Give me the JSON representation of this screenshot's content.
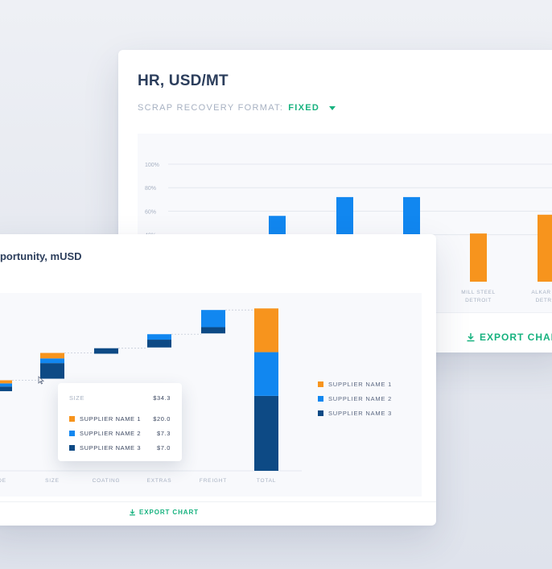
{
  "colors": {
    "supplier1": "#f7941d",
    "supplier2": "#1187f0",
    "supplier3": "#0d4a85",
    "accent": "#17b27f",
    "axis_text": "#a7b1c2",
    "gridline": "#e4e8ef"
  },
  "back_card": {
    "title": "HR, USD/MT",
    "format_label": "SCRAP RECOVERY FORMAT:",
    "format_value": "FIXED",
    "export_label": "EXPORT CHART"
  },
  "front_card": {
    "title": "pportunity, mUSD",
    "export_label": "EXPORT CHART"
  },
  "legend": {
    "items": [
      {
        "label": "SUPPLIER NAME 1",
        "color": "#f7941d"
      },
      {
        "label": "SUPPLIER NAME 2",
        "color": "#1187f0"
      },
      {
        "label": "SUPPLIER NAME 3",
        "color": "#0d4a85"
      }
    ]
  },
  "tooltip": {
    "header_label": "SIZE",
    "header_value": "$34.3",
    "rows": [
      {
        "label": "SUPPLIER NAME 1",
        "value": "$20.0",
        "color": "#f7941d"
      },
      {
        "label": "SUPPLIER NAME 2",
        "value": "$7.3",
        "color": "#1187f0"
      },
      {
        "label": "SUPPLIER NAME 3",
        "value": "$7.0",
        "color": "#0d4a85"
      }
    ]
  },
  "chart_data": [
    {
      "type": "bar",
      "title": "HR, USD/MT",
      "y_ticks": [
        "100%",
        "80%",
        "60%",
        "40%"
      ],
      "ylim": [
        0,
        100
      ],
      "grid": true,
      "categories": [
        "",
        "",
        "",
        "MILL STEEL DETROIT",
        "ALKAR ST DETRO"
      ],
      "bars": [
        {
          "value": 56,
          "color": "#1187f0"
        },
        {
          "value": 72,
          "color": "#1187f0"
        },
        {
          "value": 72,
          "color": "#1187f0"
        },
        {
          "value": 41,
          "color": "#f7941d"
        },
        {
          "value": 57,
          "color": "#f7941d"
        }
      ]
    },
    {
      "type": "bar",
      "subtype": "waterfall",
      "title": "pportunity, mUSD",
      "categories": [
        "ADE",
        "SIZE",
        "COATING",
        "EXTRAS",
        "FREIGHT",
        "TOTAL"
      ],
      "ylim": [
        0,
        100
      ],
      "series": [
        {
          "name": "SUPPLIER NAME 1",
          "values": [
            2,
            3.5,
            0,
            0,
            0,
            28
          ]
        },
        {
          "name": "SUPPLIER NAME 2",
          "values": [
            2,
            3,
            0,
            3.5,
            11,
            28
          ]
        },
        {
          "name": "SUPPLIER NAME 3",
          "values": [
            3,
            10,
            3.5,
            5,
            4,
            48
          ]
        }
      ],
      "bases": [
        51,
        59,
        75,
        79,
        88,
        0
      ],
      "connector_levels": [
        58,
        75.5,
        78.5,
        87.5,
        103
      ]
    }
  ]
}
